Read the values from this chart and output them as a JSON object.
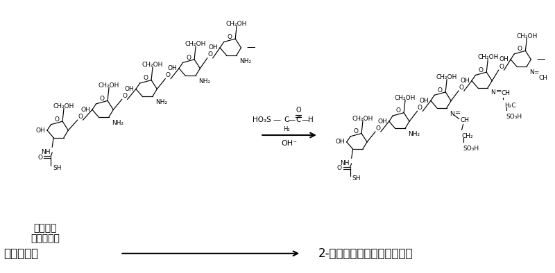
{
  "bg_color": "#ffffff",
  "fig_width": 8.0,
  "fig_height": 3.94,
  "dpi": 100,
  "bottom_left": "疏基壳聚糖",
  "bottom_right": "2-亚胺基乙醛磺酸巯基壳聚糖",
  "reagent1": "乙醛磺酸",
  "reagent2": "碱性条件下",
  "reaction_reagent": "HO₃S",
  "reaction_below": "OH⁻"
}
